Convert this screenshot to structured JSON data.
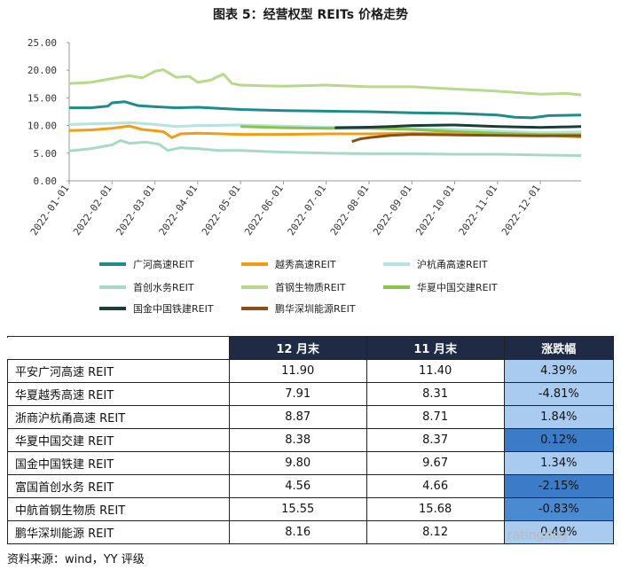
{
  "figure": {
    "title": "图表 5：经营权型 REITs 价格走势",
    "source": "资料来源：wind，YY 评级",
    "watermark": "ratingdog"
  },
  "chart_data": {
    "type": "line",
    "title": "图表 5：经营权型 REITs 价格走势",
    "xlabel": "",
    "ylabel": "",
    "ylim": [
      0,
      25
    ],
    "y_ticks": [
      "0.00",
      "5.00",
      "10.00",
      "15.00",
      "20.00",
      "25.00"
    ],
    "x_ticks": [
      "2022-01-01",
      "2022-02-01",
      "2022-03-01",
      "2022-04-01",
      "2022-05-01",
      "2022-06-01",
      "2022-07-01",
      "2022-08-01",
      "2022-09-01",
      "2022-10-01",
      "2022-11-01",
      "2022-12-01"
    ],
    "x_range_months": [
      0,
      11.95
    ],
    "legend_position": "bottom",
    "series": [
      {
        "name": "广河高速REIT",
        "color": "#1e8c8c",
        "points": [
          [
            0,
            13.2
          ],
          [
            0.5,
            13.2
          ],
          [
            0.9,
            13.5
          ],
          [
            1.0,
            14.1
          ],
          [
            1.3,
            14.3
          ],
          [
            1.6,
            13.6
          ],
          [
            2.0,
            13.4
          ],
          [
            2.5,
            13.2
          ],
          [
            3.0,
            13.3
          ],
          [
            3.5,
            13.1
          ],
          [
            4.0,
            12.9
          ],
          [
            5.0,
            12.7
          ],
          [
            6.0,
            12.6
          ],
          [
            7.0,
            12.5
          ],
          [
            8.0,
            12.3
          ],
          [
            9.0,
            12.2
          ],
          [
            10.0,
            11.9
          ],
          [
            10.4,
            11.5
          ],
          [
            10.8,
            11.4
          ],
          [
            11.2,
            11.8
          ],
          [
            11.95,
            11.9
          ]
        ]
      },
      {
        "name": "越秀高速REIT",
        "color": "#f39c12",
        "points": [
          [
            0,
            9.1
          ],
          [
            0.5,
            9.2
          ],
          [
            1.0,
            9.5
          ],
          [
            1.4,
            9.9
          ],
          [
            1.7,
            9.3
          ],
          [
            2.2,
            8.9
          ],
          [
            2.4,
            7.8
          ],
          [
            2.6,
            8.5
          ],
          [
            3.0,
            8.6
          ],
          [
            4.0,
            8.4
          ],
          [
            5.0,
            8.4
          ],
          [
            6.0,
            8.5
          ],
          [
            7.0,
            8.5
          ],
          [
            8.0,
            8.6
          ],
          [
            9.0,
            8.5
          ],
          [
            10.0,
            8.5
          ],
          [
            11.0,
            8.3
          ],
          [
            11.95,
            7.91
          ]
        ]
      },
      {
        "name": "沪杭甬高速REIT",
        "color": "#b5e3dd",
        "points": [
          [
            0,
            10.2
          ],
          [
            1.0,
            10.4
          ],
          [
            1.5,
            10.5
          ],
          [
            2.0,
            10.2
          ],
          [
            2.5,
            9.8
          ],
          [
            3.0,
            10.0
          ],
          [
            4.0,
            10.1
          ],
          [
            5.0,
            9.9
          ],
          [
            6.0,
            9.7
          ],
          [
            7.0,
            9.6
          ],
          [
            8.0,
            9.5
          ],
          [
            9.0,
            9.3
          ],
          [
            10.0,
            9.0
          ],
          [
            11.0,
            8.71
          ],
          [
            11.95,
            8.87
          ]
        ]
      },
      {
        "name": "首创水务REIT",
        "color": "#a8d8c8",
        "points": [
          [
            0,
            5.4
          ],
          [
            0.5,
            5.8
          ],
          [
            1.0,
            6.5
          ],
          [
            1.2,
            7.3
          ],
          [
            1.4,
            6.8
          ],
          [
            1.8,
            7.0
          ],
          [
            2.1,
            6.6
          ],
          [
            2.3,
            5.5
          ],
          [
            2.6,
            6.0
          ],
          [
            3.0,
            5.8
          ],
          [
            3.5,
            5.5
          ],
          [
            4.0,
            5.5
          ],
          [
            5.0,
            5.2
          ],
          [
            6.0,
            5.0
          ],
          [
            7.0,
            4.9
          ],
          [
            8.0,
            4.9
          ],
          [
            9.0,
            4.8
          ],
          [
            10.0,
            4.8
          ],
          [
            11.0,
            4.66
          ],
          [
            11.95,
            4.56
          ]
        ]
      },
      {
        "name": "首钢生物质REIT",
        "color": "#b8d98a",
        "points": [
          [
            0,
            17.6
          ],
          [
            0.5,
            17.8
          ],
          [
            1.0,
            18.5
          ],
          [
            1.4,
            19.0
          ],
          [
            1.7,
            18.6
          ],
          [
            2.0,
            19.8
          ],
          [
            2.2,
            20.1
          ],
          [
            2.5,
            18.7
          ],
          [
            2.8,
            18.9
          ],
          [
            3.0,
            17.8
          ],
          [
            3.3,
            18.2
          ],
          [
            3.6,
            19.3
          ],
          [
            3.8,
            17.6
          ],
          [
            4.0,
            17.3
          ],
          [
            4.5,
            17.2
          ],
          [
            5.0,
            17.1
          ],
          [
            6.0,
            17.3
          ],
          [
            7.0,
            17.0
          ],
          [
            8.0,
            17.0
          ],
          [
            9.0,
            16.6
          ],
          [
            10.0,
            16.2
          ],
          [
            11.0,
            15.68
          ],
          [
            11.6,
            15.8
          ],
          [
            11.95,
            15.55
          ]
        ]
      },
      {
        "name": "华夏中国交建REIT",
        "color": "#8bc34a",
        "points": [
          [
            4.0,
            9.8
          ],
          [
            5.0,
            9.6
          ],
          [
            6.0,
            9.5
          ],
          [
            7.0,
            9.5
          ],
          [
            8.0,
            9.3
          ],
          [
            9.0,
            8.9
          ],
          [
            10.0,
            8.6
          ],
          [
            11.0,
            8.37
          ],
          [
            11.95,
            8.38
          ]
        ]
      },
      {
        "name": "国金中国铁建REIT",
        "color": "#1b3d3a",
        "points": [
          [
            6.2,
            9.6
          ],
          [
            7.0,
            9.7
          ],
          [
            7.5,
            9.8
          ],
          [
            8.0,
            10.0
          ],
          [
            9.0,
            10.1
          ],
          [
            10.0,
            9.8
          ],
          [
            11.0,
            9.67
          ],
          [
            11.95,
            9.8
          ]
        ]
      },
      {
        "name": "鹏华深圳能源REIT",
        "color": "#8b4f16",
        "points": [
          [
            6.6,
            7.1
          ],
          [
            6.8,
            7.6
          ],
          [
            7.0,
            7.8
          ],
          [
            7.5,
            8.2
          ],
          [
            8.0,
            8.4
          ],
          [
            9.0,
            8.3
          ],
          [
            10.0,
            8.2
          ],
          [
            11.0,
            8.12
          ],
          [
            11.95,
            8.16
          ]
        ]
      }
    ]
  },
  "table": {
    "headers": [
      "",
      "12 月末",
      "11 月末",
      "涨跌幅"
    ],
    "rows": [
      {
        "name": "平安广河高速 REIT",
        "dec": "11.90",
        "nov": "11.40",
        "chg": "4.39%",
        "chg_value": 4.39
      },
      {
        "name": "华夏越秀高速 REIT",
        "dec": "7.91",
        "nov": "8.31",
        "chg": "-4.81%",
        "chg_value": -4.81
      },
      {
        "name": "浙商沪杭甬高速 REIT",
        "dec": "8.87",
        "nov": "8.71",
        "chg": "1.84%",
        "chg_value": 1.84
      },
      {
        "name": "华夏中国交建 REIT",
        "dec": "8.38",
        "nov": "8.37",
        "chg": "0.12%",
        "chg_value": 0.12
      },
      {
        "name": "国金中国铁建 REIT",
        "dec": "9.80",
        "nov": "9.67",
        "chg": "1.34%",
        "chg_value": 1.34
      },
      {
        "name": "富国首创水务 REIT",
        "dec": "4.56",
        "nov": "4.66",
        "chg": "-2.15%",
        "chg_value": -2.15
      },
      {
        "name": "中航首钢生物质 REIT",
        "dec": "15.55",
        "nov": "15.68",
        "chg": "-0.83%",
        "chg_value": -0.83
      },
      {
        "name": "鹏华深圳能源 REIT",
        "dec": "8.16",
        "nov": "8.12",
        "chg": "0.49%",
        "chg_value": 0.49
      }
    ],
    "chg_colors": [
      "#a9cbef",
      "#a9cbef",
      "#a9cbef",
      "#3a7cc7",
      "#a9cbef",
      "#3a7cc7",
      "#4a8ad0",
      "#a9cbef"
    ]
  }
}
